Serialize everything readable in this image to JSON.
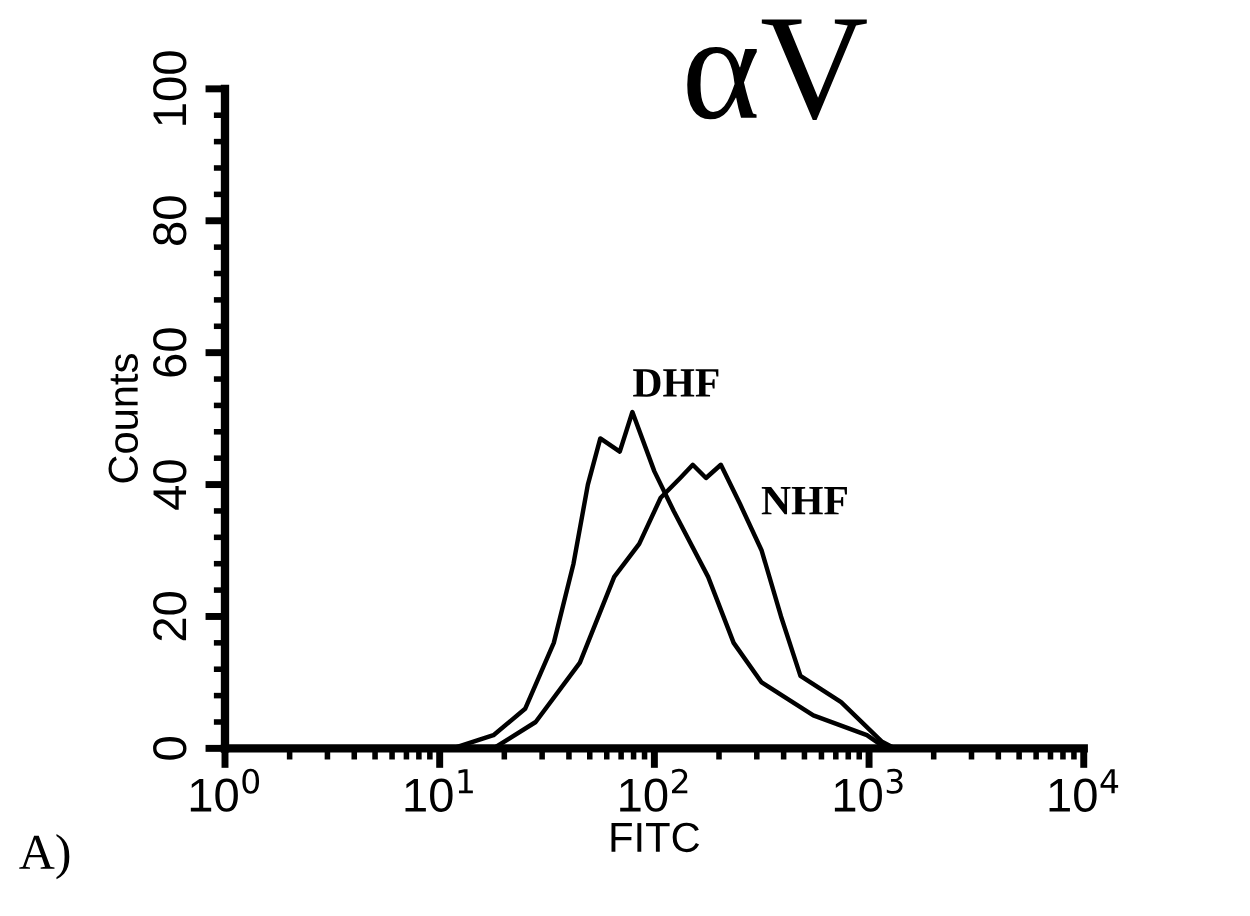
{
  "chart_data": {
    "type": "line",
    "title": "αV",
    "xlabel": "FITC",
    "ylabel": "Counts",
    "log": "x",
    "xlim": [
      1,
      10000
    ],
    "xticks": [
      {
        "value": 1,
        "label": "10$^{0}$"
      },
      {
        "value": 10,
        "label": "10$^{1}$"
      },
      {
        "value": 100,
        "label": "10$^{2}$"
      },
      {
        "value": 1000,
        "label": "10$^{3}$"
      },
      {
        "value": 10000,
        "label": "10$^{4}$"
      }
    ],
    "ylim": [
      0,
      100
    ],
    "yticks": [
      0,
      20,
      40,
      60,
      80,
      100
    ],
    "grid": false,
    "legend": false,
    "marker": "none",
    "line_style": "solid",
    "annotations": [
      "A)"
    ],
    "series": [
      {
        "name": "DHF",
        "color": "#000000",
        "x": [
          11.5,
          17.8,
          25,
          34,
          42,
          49,
          56,
          69,
          79,
          100,
          123,
          178,
          234,
          316,
          550,
          977,
          1200
        ],
        "values": [
          0,
          2,
          6,
          16,
          28,
          40,
          47,
          45,
          51,
          42,
          36,
          26,
          16,
          10,
          5,
          2,
          0
        ]
      },
      {
        "name": "NHF",
        "color": "#000000",
        "x": [
          17.8,
          28,
          45,
          65,
          85,
          107,
          132,
          151,
          174,
          204,
          251,
          316,
          389,
          479,
          741,
          1150,
          1320
        ],
        "values": [
          0,
          4,
          13,
          26,
          31,
          38,
          41,
          43,
          41,
          43,
          37,
          30,
          20,
          11,
          7,
          1,
          0
        ]
      }
    ]
  }
}
